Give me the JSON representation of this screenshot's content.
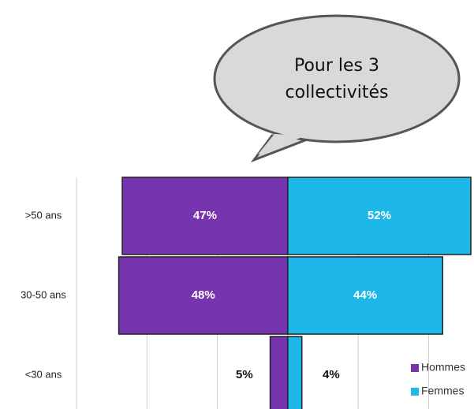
{
  "chart_data": {
    "type": "pyramid",
    "annotation": [
      "Pour les 3",
      "collectivités"
    ],
    "categories": [
      ">50 ans",
      "30-50 ans",
      "<30 ans"
    ],
    "series": [
      {
        "name": "Hommes",
        "color": "#7634ae",
        "values": [
          47,
          48,
          5
        ],
        "value_labels": [
          "47%",
          "48%",
          "5%"
        ]
      },
      {
        "name": "Femmes",
        "color": "#1db7ea",
        "values": [
          52,
          44,
          4
        ],
        "value_labels": [
          "52%",
          "44%",
          "4%"
        ]
      }
    ],
    "xlim": [
      -60,
      52
    ],
    "xticks": [
      -60,
      -40,
      -20,
      0,
      20,
      40
    ],
    "grid": true,
    "legend": "bottom-right"
  }
}
